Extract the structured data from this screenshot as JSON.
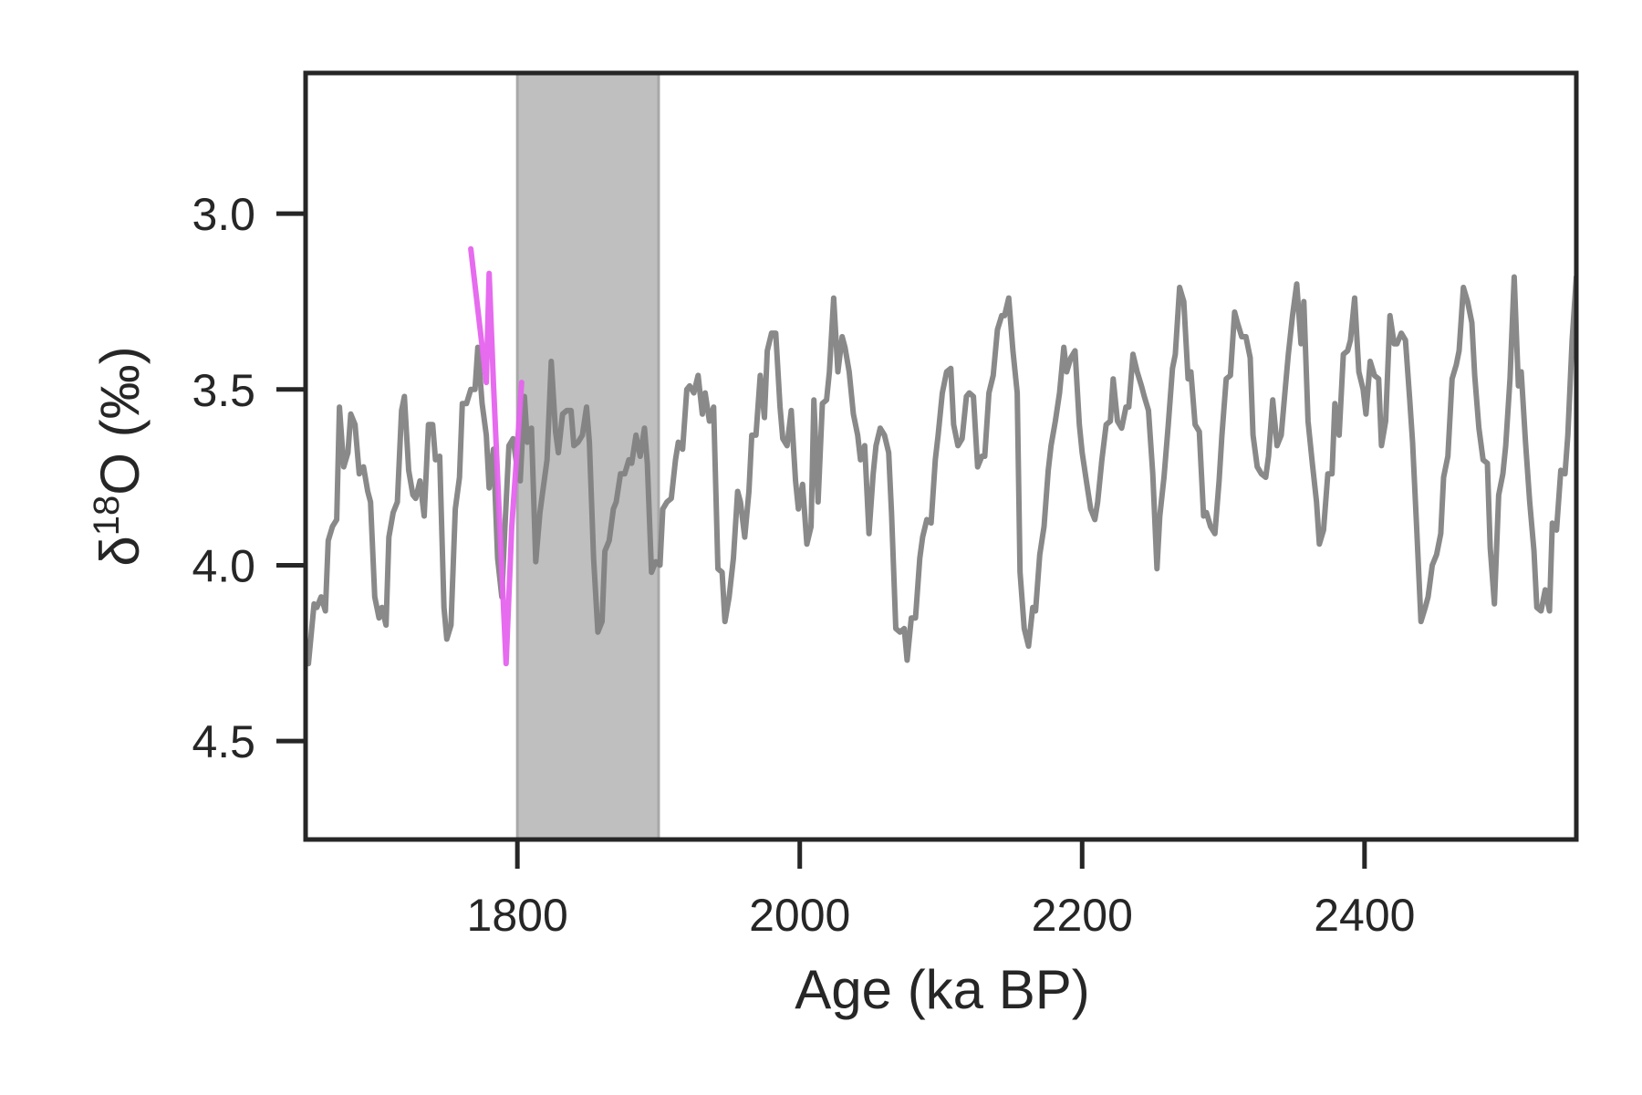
{
  "chart_data": {
    "type": "line",
    "title": "",
    "xlabel": "Age (ka BP)",
    "ylabel": "δ¹⁸O (‰)",
    "ylabel_parts": {
      "base": "δ",
      "sup": "18",
      "rest": "O (‰)"
    },
    "xlim": [
      1650,
      2550
    ],
    "ylim": [
      4.78,
      2.6
    ],
    "y_inverted": true,
    "x_ticks": [
      1800,
      2000,
      2200,
      2400
    ],
    "y_ticks": [
      3.0,
      3.5,
      4.0,
      4.5
    ],
    "x_tick_labels": [
      "1800",
      "2000",
      "2200",
      "2400"
    ],
    "y_tick_labels": [
      "3.0",
      "3.5",
      "4.0",
      "4.5"
    ],
    "grid": false,
    "legend": "none",
    "shaded_band": {
      "x_start": 1800,
      "x_end": 1900,
      "color": "#bfbfbf",
      "edge_color": "#a8a8a8"
    },
    "series": [
      {
        "color": "#7f7f7f",
        "x": [
          1652,
          1656,
          1658,
          1661,
          1664,
          1666,
          1669,
          1672,
          1674,
          1677,
          1680,
          1682,
          1685,
          1688,
          1691,
          1694,
          1696,
          1699,
          1702,
          1704,
          1707,
          1709,
          1712,
          1715,
          1718,
          1720,
          1723,
          1726,
          1728,
          1731,
          1734,
          1737,
          1740,
          1742,
          1745,
          1748,
          1750,
          1753,
          1756,
          1759,
          1761,
          1764,
          1767,
          1770,
          1772,
          1775,
          1778,
          1780,
          1783,
          1786,
          1789,
          1791,
          1794,
          1797,
          1800,
          1802,
          1805,
          1807,
          1810,
          1813,
          1816,
          1818,
          1821,
          1824,
          1827,
          1829,
          1832,
          1835,
          1838,
          1840,
          1843,
          1846,
          1849,
          1851,
          1854,
          1857,
          1860,
          1862,
          1865,
          1868,
          1870,
          1873,
          1876,
          1879,
          1881,
          1884,
          1887,
          1890,
          1892,
          1895,
          1898,
          1901,
          1903,
          1906,
          1909,
          1912,
          1914,
          1917,
          1920,
          1922,
          1925,
          1928,
          1931,
          1933,
          1936,
          1939,
          1942,
          1945,
          1947,
          1950,
          1953,
          1956,
          1958,
          1961,
          1964,
          1966,
          1969,
          1972,
          1975,
          1977,
          1980,
          1983,
          1986,
          1988,
          1991,
          1994,
          1997,
          1999,
          2002,
          2005,
          2008,
          2010,
          2013,
          2016,
          2019,
          2021,
          2024,
          2027,
          2030,
          2032,
          2035,
          2038,
          2041,
          2043,
          2046,
          2049,
          2052,
          2054,
          2057,
          2060,
          2063,
          2065,
          2068,
          2071,
          2074,
          2076,
          2079,
          2082,
          2085,
          2087,
          2090,
          2093,
          2096,
          2098,
          2101,
          2104,
          2107,
          2109,
          2112,
          2115,
          2118,
          2120,
          2123,
          2126,
          2129,
          2131,
          2134,
          2137,
          2140,
          2143,
          2145,
          2148,
          2151,
          2154,
          2156,
          2159,
          2162,
          2165,
          2167,
          2170,
          2173,
          2176,
          2178,
          2181,
          2184,
          2187,
          2189,
          2192,
          2195,
          2198,
          2200,
          2203,
          2206,
          2209,
          2211,
          2214,
          2217,
          2220,
          2222,
          2225,
          2228,
          2231,
          2233,
          2236,
          2239,
          2242,
          2244,
          2247,
          2250,
          2253,
          2255,
          2258,
          2261,
          2264,
          2266,
          2269,
          2272,
          2275,
          2277,
          2280,
          2283,
          2286,
          2288,
          2291,
          2294,
          2297,
          2299,
          2302,
          2305,
          2308,
          2310,
          2313,
          2316,
          2319,
          2321,
          2324,
          2327,
          2330,
          2332,
          2335,
          2338,
          2341,
          2344,
          2346,
          2349,
          2352,
          2355,
          2357,
          2360,
          2363,
          2366,
          2368,
          2371,
          2374,
          2377,
          2379,
          2382,
          2385,
          2388,
          2390,
          2393,
          2396,
          2399,
          2401,
          2404,
          2407,
          2410,
          2412,
          2415,
          2418,
          2421,
          2423,
          2426,
          2429,
          2432,
          2434,
          2437,
          2440,
          2443,
          2445,
          2448,
          2451,
          2454,
          2456,
          2459,
          2462,
          2465,
          2467,
          2470,
          2473,
          2476,
          2478,
          2481,
          2484,
          2487,
          2489,
          2492,
          2495,
          2498,
          2500,
          2503,
          2506,
          2509,
          2511,
          2514,
          2517,
          2520,
          2522,
          2525,
          2528,
          2531,
          2533,
          2536,
          2539,
          2542,
          2544,
          2547,
          2550
        ],
        "y": [
          4.28,
          4.11,
          4.12,
          4.09,
          4.13,
          3.93,
          3.89,
          3.87,
          3.55,
          3.72,
          3.68,
          3.57,
          3.6,
          3.74,
          3.72,
          3.79,
          3.82,
          4.09,
          4.15,
          4.12,
          4.17,
          3.92,
          3.85,
          3.82,
          3.56,
          3.52,
          3.73,
          3.8,
          3.81,
          3.76,
          3.86,
          3.6,
          3.6,
          3.7,
          3.69,
          4.12,
          4.21,
          4.17,
          3.84,
          3.75,
          3.54,
          3.54,
          3.5,
          3.5,
          3.38,
          3.54,
          3.63,
          3.78,
          3.67,
          3.98,
          4.09,
          3.91,
          3.66,
          3.64,
          3.73,
          3.76,
          3.52,
          3.65,
          3.61,
          3.99,
          3.85,
          3.79,
          3.7,
          3.42,
          3.62,
          3.68,
          3.57,
          3.56,
          3.56,
          3.66,
          3.65,
          3.63,
          3.55,
          3.65,
          3.98,
          4.19,
          4.16,
          3.96,
          3.93,
          3.84,
          3.82,
          3.74,
          3.74,
          3.7,
          3.71,
          3.63,
          3.69,
          3.61,
          3.71,
          4.02,
          3.99,
          4.0,
          3.84,
          3.82,
          3.81,
          3.7,
          3.65,
          3.67,
          3.5,
          3.49,
          3.51,
          3.46,
          3.57,
          3.51,
          3.59,
          3.55,
          4.01,
          4.02,
          4.16,
          4.09,
          3.98,
          3.79,
          3.82,
          3.92,
          3.79,
          3.63,
          3.63,
          3.46,
          3.58,
          3.39,
          3.34,
          3.34,
          3.55,
          3.64,
          3.66,
          3.56,
          3.76,
          3.84,
          3.77,
          3.94,
          3.89,
          3.53,
          3.82,
          3.54,
          3.53,
          3.45,
          3.24,
          3.45,
          3.35,
          3.38,
          3.45,
          3.57,
          3.63,
          3.7,
          3.66,
          3.91,
          3.74,
          3.66,
          3.61,
          3.63,
          3.68,
          3.85,
          4.18,
          4.19,
          4.18,
          4.27,
          4.15,
          4.15,
          3.98,
          3.92,
          3.87,
          3.88,
          3.7,
          3.63,
          3.51,
          3.45,
          3.44,
          3.6,
          3.66,
          3.64,
          3.52,
          3.51,
          3.52,
          3.72,
          3.69,
          3.69,
          3.51,
          3.46,
          3.33,
          3.29,
          3.29,
          3.24,
          3.39,
          3.51,
          4.02,
          4.18,
          4.23,
          4.12,
          4.13,
          3.97,
          3.89,
          3.73,
          3.66,
          3.59,
          3.51,
          3.38,
          3.45,
          3.41,
          3.39,
          3.6,
          3.68,
          3.76,
          3.84,
          3.87,
          3.82,
          3.7,
          3.6,
          3.59,
          3.47,
          3.59,
          3.61,
          3.55,
          3.55,
          3.4,
          3.45,
          3.49,
          3.52,
          3.56,
          3.74,
          4.01,
          3.86,
          3.75,
          3.6,
          3.44,
          3.4,
          3.21,
          3.25,
          3.47,
          3.45,
          3.6,
          3.62,
          3.86,
          3.85,
          3.89,
          3.91,
          3.76,
          3.63,
          3.47,
          3.46,
          3.28,
          3.31,
          3.35,
          3.35,
          3.41,
          3.63,
          3.72,
          3.74,
          3.75,
          3.69,
          3.53,
          3.66,
          3.63,
          3.49,
          3.4,
          3.29,
          3.2,
          3.37,
          3.25,
          3.59,
          3.71,
          3.82,
          3.94,
          3.9,
          3.74,
          3.74,
          3.54,
          3.63,
          3.4,
          3.39,
          3.36,
          3.24,
          3.45,
          3.5,
          3.57,
          3.42,
          3.46,
          3.47,
          3.66,
          3.59,
          3.29,
          3.37,
          3.37,
          3.34,
          3.36,
          3.53,
          3.65,
          3.9,
          4.16,
          4.12,
          4.09,
          4.0,
          3.97,
          3.91,
          3.75,
          3.69,
          3.47,
          3.43,
          3.39,
          3.21,
          3.25,
          3.31,
          3.46,
          3.61,
          3.7,
          3.71,
          3.95,
          4.11,
          3.8,
          3.74,
          3.66,
          3.47,
          3.18,
          3.49,
          3.45,
          3.65,
          3.82,
          3.96,
          4.12,
          4.13,
          4.07,
          4.13,
          3.88,
          3.9,
          3.73,
          3.74,
          3.63,
          3.36,
          3.18
        ]
      },
      {
        "color": "#e563ee",
        "x": [
          1767,
          1778,
          1780,
          1783,
          1788,
          1792,
          1796,
          1800,
          1803
        ],
        "y": [
          3.1,
          3.48,
          3.17,
          3.48,
          3.93,
          4.28,
          3.89,
          3.66,
          3.48
        ]
      }
    ]
  }
}
